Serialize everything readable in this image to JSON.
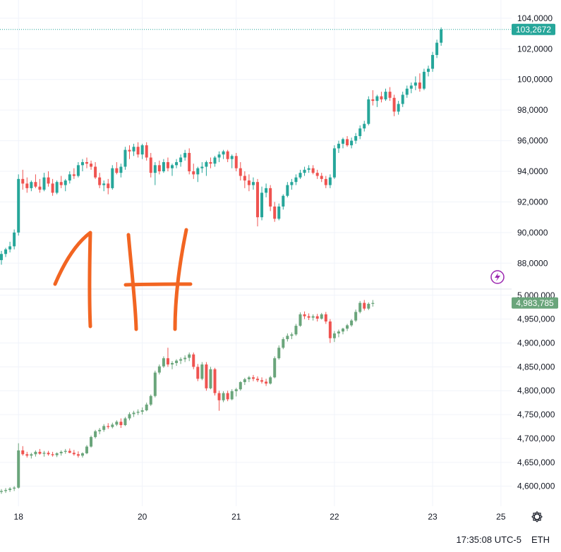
{
  "colors": {
    "up": "#26a69a",
    "down": "#ef5350",
    "up_lower": "#6aa57b",
    "down_lower": "#ef5350",
    "grid": "#f0f3fa",
    "annotation": "#f26522",
    "lightning": "#9c27b0"
  },
  "annotation_text": "1H",
  "status": {
    "time": "17:35:08 UTC-5",
    "currency": "ETH"
  },
  "icons": {
    "settings": "gear-icon",
    "lightning": "lightning-icon"
  },
  "chart_data": [
    {
      "type": "candlestick",
      "name": "upper-price-pane",
      "ylim": [
        87.0,
        104.5
      ],
      "y_ticks": [
        "104,0000",
        "102,0000",
        "100,0000",
        "98,0000",
        "96,0000",
        "94,0000",
        "92,0000",
        "90,0000",
        "88,0000"
      ],
      "y_tick_values": [
        104,
        102,
        100,
        98,
        96,
        94,
        92,
        90,
        88
      ],
      "last_price_label": "103,2672",
      "last_price": 103.2672,
      "x_ticks": [
        {
          "label": "18",
          "t": 4
        },
        {
          "label": "20",
          "t": 33
        },
        {
          "label": "21",
          "t": 55
        },
        {
          "label": "22",
          "t": 78
        },
        {
          "label": "23",
          "t": 101
        },
        {
          "label": "25",
          "t": 117
        }
      ],
      "candles": [
        [
          88.2,
          88.8,
          87.9,
          88.6
        ],
        [
          88.6,
          89.0,
          88.4,
          88.9
        ],
        [
          88.9,
          89.4,
          88.7,
          89.1
        ],
        [
          89.1,
          90.2,
          88.9,
          90.0
        ],
        [
          90.0,
          93.8,
          89.8,
          93.5
        ],
        [
          93.5,
          94.1,
          92.8,
          93.2
        ],
        [
          93.2,
          93.6,
          92.6,
          92.9
        ],
        [
          92.9,
          93.4,
          92.7,
          93.3
        ],
        [
          93.3,
          93.8,
          92.9,
          93.0
        ],
        [
          93.0,
          93.5,
          92.6,
          92.8
        ],
        [
          92.8,
          93.9,
          92.7,
          93.6
        ],
        [
          93.6,
          94.0,
          93.0,
          93.2
        ],
        [
          93.2,
          93.5,
          92.4,
          92.6
        ],
        [
          92.6,
          93.4,
          92.5,
          93.3
        ],
        [
          93.3,
          93.7,
          92.9,
          93.1
        ],
        [
          93.1,
          93.5,
          92.7,
          93.4
        ],
        [
          93.4,
          94.0,
          93.2,
          93.8
        ],
        [
          93.8,
          94.2,
          93.5,
          93.7
        ],
        [
          93.7,
          94.6,
          93.6,
          94.4
        ],
        [
          94.4,
          94.8,
          94.0,
          94.6
        ],
        [
          94.6,
          94.9,
          94.2,
          94.5
        ],
        [
          94.5,
          94.7,
          94.1,
          94.3
        ],
        [
          94.3,
          94.6,
          93.5,
          93.6
        ],
        [
          93.6,
          93.9,
          92.9,
          93.1
        ],
        [
          93.1,
          93.4,
          92.7,
          93.2
        ],
        [
          93.2,
          93.5,
          92.5,
          92.9
        ],
        [
          92.9,
          94.4,
          92.8,
          94.2
        ],
        [
          94.2,
          94.6,
          93.8,
          93.9
        ],
        [
          93.9,
          94.5,
          93.6,
          94.3
        ],
        [
          94.3,
          95.6,
          94.1,
          95.4
        ],
        [
          95.4,
          95.7,
          94.8,
          95.3
        ],
        [
          95.3,
          95.8,
          95.0,
          95.6
        ],
        [
          95.6,
          95.9,
          94.9,
          95.1
        ],
        [
          95.1,
          95.8,
          94.8,
          95.7
        ],
        [
          95.7,
          95.9,
          94.7,
          94.9
        ],
        [
          94.9,
          95.2,
          93.6,
          93.9
        ],
        [
          93.9,
          94.6,
          93.1,
          94.4
        ],
        [
          94.4,
          94.7,
          93.8,
          94.0
        ],
        [
          94.0,
          94.8,
          93.9,
          94.6
        ],
        [
          94.6,
          94.9,
          94.0,
          94.2
        ],
        [
          94.2,
          94.5,
          93.7,
          94.4
        ],
        [
          94.4,
          94.8,
          94.2,
          94.6
        ],
        [
          94.6,
          95.1,
          94.3,
          94.9
        ],
        [
          94.9,
          95.4,
          94.7,
          95.2
        ],
        [
          95.2,
          95.5,
          93.8,
          94.0
        ],
        [
          94.0,
          94.5,
          93.5,
          93.8
        ],
        [
          93.8,
          94.3,
          93.3,
          94.2
        ],
        [
          94.2,
          94.6,
          93.9,
          94.3
        ],
        [
          94.3,
          94.7,
          93.7,
          94.6
        ],
        [
          94.6,
          94.9,
          94.2,
          94.5
        ],
        [
          94.5,
          95.0,
          94.3,
          94.9
        ],
        [
          94.9,
          95.3,
          94.6,
          95.1
        ],
        [
          95.1,
          95.4,
          94.8,
          95.3
        ],
        [
          95.3,
          95.4,
          94.6,
          94.8
        ],
        [
          94.8,
          95.1,
          94.2,
          95.0
        ],
        [
          95.0,
          95.2,
          94.0,
          94.2
        ],
        [
          94.2,
          94.6,
          93.4,
          93.7
        ],
        [
          93.7,
          94.0,
          92.9,
          93.4
        ],
        [
          93.4,
          93.8,
          92.7,
          93.1
        ],
        [
          93.1,
          93.6,
          92.8,
          93.3
        ],
        [
          93.3,
          93.5,
          90.4,
          91.0
        ],
        [
          91.0,
          93.0,
          90.8,
          92.6
        ],
        [
          92.6,
          93.2,
          92.3,
          92.9
        ],
        [
          92.9,
          93.1,
          91.4,
          91.7
        ],
        [
          91.7,
          92.0,
          90.7,
          90.9
        ],
        [
          90.9,
          91.9,
          90.8,
          91.7
        ],
        [
          91.7,
          92.5,
          91.5,
          92.4
        ],
        [
          92.4,
          93.3,
          92.3,
          93.1
        ],
        [
          93.1,
          93.5,
          92.8,
          93.3
        ],
        [
          93.3,
          93.8,
          93.1,
          93.6
        ],
        [
          93.6,
          94.1,
          93.5,
          93.9
        ],
        [
          93.9,
          94.3,
          93.7,
          94.1
        ],
        [
          94.1,
          94.4,
          93.9,
          94.2
        ],
        [
          94.2,
          94.4,
          93.8,
          93.9
        ],
        [
          93.9,
          94.1,
          93.5,
          93.7
        ],
        [
          93.7,
          93.9,
          93.3,
          93.5
        ],
        [
          93.5,
          93.7,
          92.9,
          93.1
        ],
        [
          93.1,
          93.8,
          92.9,
          93.6
        ],
        [
          93.6,
          95.7,
          93.5,
          95.5
        ],
        [
          95.5,
          96.0,
          95.2,
          95.8
        ],
        [
          95.8,
          96.2,
          95.5,
          96.1
        ],
        [
          96.1,
          96.3,
          95.6,
          95.7
        ],
        [
          95.7,
          96.2,
          95.5,
          96.0
        ],
        [
          96.0,
          96.5,
          95.8,
          96.3
        ],
        [
          96.3,
          97.0,
          96.1,
          96.8
        ],
        [
          96.8,
          97.3,
          96.6,
          97.1
        ],
        [
          97.1,
          98.9,
          97.0,
          98.7
        ],
        [
          98.7,
          99.3,
          98.3,
          98.6
        ],
        [
          98.6,
          99.0,
          98.2,
          98.9
        ],
        [
          98.9,
          99.2,
          98.5,
          98.7
        ],
        [
          98.7,
          99.4,
          98.6,
          99.2
        ],
        [
          99.2,
          99.5,
          98.6,
          98.8
        ],
        [
          98.8,
          99.0,
          97.6,
          97.9
        ],
        [
          97.9,
          98.6,
          97.7,
          98.4
        ],
        [
          98.4,
          99.2,
          98.2,
          99.0
        ],
        [
          99.0,
          99.6,
          98.8,
          99.4
        ],
        [
          99.4,
          99.8,
          99.1,
          99.6
        ],
        [
          99.6,
          100.2,
          99.3,
          99.8
        ],
        [
          99.8,
          100.4,
          99.2,
          99.4
        ],
        [
          99.4,
          100.7,
          99.3,
          100.5
        ],
        [
          100.5,
          100.9,
          100.2,
          100.7
        ],
        [
          100.7,
          101.8,
          100.5,
          101.6
        ],
        [
          101.6,
          102.6,
          101.4,
          102.4
        ],
        [
          102.4,
          103.4,
          102.2,
          103.27
        ]
      ]
    },
    {
      "type": "candlestick",
      "name": "lower-volume-pane",
      "ylim": [
        4570000,
        5010000
      ],
      "y_ticks": [
        "5,000,000",
        "4,950,000",
        "4,900,000",
        "4,850,000",
        "4,800,000",
        "4,750,000",
        "4,700,000",
        "4,650,000",
        "4,600,000"
      ],
      "y_tick_values": [
        5000000,
        4950000,
        4900000,
        4850000,
        4800000,
        4750000,
        4700000,
        4650000,
        4600000
      ],
      "last_value_label": "4,983,785",
      "last_value": 4983785,
      "candles": [
        [
          4588000,
          4594000,
          4584000,
          4590000
        ],
        [
          4590000,
          4596000,
          4586000,
          4592000
        ],
        [
          4592000,
          4598000,
          4588000,
          4595000
        ],
        [
          4595000,
          4600000,
          4590000,
          4597000
        ],
        [
          4597000,
          4690000,
          4595000,
          4675000
        ],
        [
          4675000,
          4684000,
          4664000,
          4667000
        ],
        [
          4667000,
          4672000,
          4660000,
          4664000
        ],
        [
          4664000,
          4670000,
          4658000,
          4667000
        ],
        [
          4667000,
          4675000,
          4662000,
          4672000
        ],
        [
          4672000,
          4678000,
          4666000,
          4668000
        ],
        [
          4668000,
          4674000,
          4662000,
          4670000
        ],
        [
          4670000,
          4674000,
          4664000,
          4667000
        ],
        [
          4667000,
          4672000,
          4662000,
          4665000
        ],
        [
          4665000,
          4671000,
          4661000,
          4669000
        ],
        [
          4669000,
          4675000,
          4664000,
          4672000
        ],
        [
          4672000,
          4678000,
          4668000,
          4674000
        ],
        [
          4674000,
          4679000,
          4669000,
          4670000
        ],
        [
          4670000,
          4676000,
          4664000,
          4667000
        ],
        [
          4667000,
          4673000,
          4660000,
          4664000
        ],
        [
          4664000,
          4671000,
          4660000,
          4669000
        ],
        [
          4669000,
          4686000,
          4667000,
          4683000
        ],
        [
          4683000,
          4706000,
          4681000,
          4703000
        ],
        [
          4703000,
          4718000,
          4700000,
          4715000
        ],
        [
          4715000,
          4722000,
          4709000,
          4718000
        ],
        [
          4718000,
          4730000,
          4714000,
          4726000
        ],
        [
          4726000,
          4732000,
          4720000,
          4724000
        ],
        [
          4724000,
          4733000,
          4721000,
          4729000
        ],
        [
          4729000,
          4738000,
          4726000,
          4735000
        ],
        [
          4735000,
          4742000,
          4722000,
          4728000
        ],
        [
          4728000,
          4745000,
          4726000,
          4742000
        ],
        [
          4742000,
          4755000,
          4738000,
          4751000
        ],
        [
          4751000,
          4758000,
          4745000,
          4754000
        ],
        [
          4754000,
          4761000,
          4749000,
          4756000
        ],
        [
          4756000,
          4765000,
          4750000,
          4759000
        ],
        [
          4759000,
          4775000,
          4757000,
          4771000
        ],
        [
          4771000,
          4792000,
          4768000,
          4789000
        ],
        [
          4789000,
          4842000,
          4786000,
          4838000
        ],
        [
          4838000,
          4855000,
          4834000,
          4851000
        ],
        [
          4851000,
          4872000,
          4848000,
          4868000
        ],
        [
          4868000,
          4890000,
          4850000,
          4855000
        ],
        [
          4855000,
          4862000,
          4845000,
          4858000
        ],
        [
          4858000,
          4866000,
          4852000,
          4863000
        ],
        [
          4863000,
          4870000,
          4856000,
          4866000
        ],
        [
          4866000,
          4874000,
          4860000,
          4869000
        ],
        [
          4869000,
          4880000,
          4862000,
          4876000
        ],
        [
          4876000,
          4880000,
          4845000,
          4850000
        ],
        [
          4850000,
          4856000,
          4820000,
          4825000
        ],
        [
          4825000,
          4860000,
          4822000,
          4855000
        ],
        [
          4855000,
          4860000,
          4800000,
          4805000
        ],
        [
          4805000,
          4850000,
          4803000,
          4845000
        ],
        [
          4845000,
          4848000,
          4790000,
          4795000
        ],
        [
          4795000,
          4800000,
          4758000,
          4780000
        ],
        [
          4780000,
          4799000,
          4776000,
          4795000
        ],
        [
          4795000,
          4800000,
          4778000,
          4782000
        ],
        [
          4782000,
          4803000,
          4780000,
          4799000
        ],
        [
          4799000,
          4806000,
          4788000,
          4803000
        ],
        [
          4803000,
          4820000,
          4800000,
          4818000
        ],
        [
          4818000,
          4827000,
          4812000,
          4824000
        ],
        [
          4824000,
          4831000,
          4818000,
          4828000
        ],
        [
          4828000,
          4833000,
          4820000,
          4825000
        ],
        [
          4825000,
          4830000,
          4818000,
          4822000
        ],
        [
          4822000,
          4828000,
          4815000,
          4819000
        ],
        [
          4819000,
          4825000,
          4810000,
          4815000
        ],
        [
          4815000,
          4831000,
          4813000,
          4828000
        ],
        [
          4828000,
          4872000,
          4826000,
          4868000
        ],
        [
          4868000,
          4895000,
          4865000,
          4890000
        ],
        [
          4890000,
          4912000,
          4887000,
          4908000
        ],
        [
          4908000,
          4920000,
          4903000,
          4915000
        ],
        [
          4915000,
          4922000,
          4908000,
          4918000
        ],
        [
          4918000,
          4940000,
          4915000,
          4936000
        ],
        [
          4936000,
          4964000,
          4934000,
          4960000
        ],
        [
          4960000,
          4966000,
          4950000,
          4956000
        ],
        [
          4956000,
          4962000,
          4948000,
          4953000
        ],
        [
          4953000,
          4960000,
          4947000,
          4956000
        ],
        [
          4956000,
          4961000,
          4945000,
          4951000
        ],
        [
          4951000,
          4963000,
          4949000,
          4960000
        ],
        [
          4960000,
          4965000,
          4940000,
          4945000
        ],
        [
          4945000,
          4950000,
          4900000,
          4910000
        ],
        [
          4910000,
          4925000,
          4902000,
          4920000
        ],
        [
          4920000,
          4928000,
          4912000,
          4924000
        ],
        [
          4924000,
          4932000,
          4918000,
          4930000
        ],
        [
          4930000,
          4940000,
          4925000,
          4937000
        ],
        [
          4937000,
          4950000,
          4934000,
          4947000
        ],
        [
          4947000,
          4970000,
          4944000,
          4965000
        ],
        [
          4965000,
          4988000,
          4962000,
          4984000
        ],
        [
          4984000,
          4990000,
          4968000,
          4972000
        ],
        [
          4972000,
          4985000,
          4969000,
          4982000
        ],
        [
          4982000,
          4990000,
          4976000,
          4983785
        ]
      ]
    }
  ]
}
